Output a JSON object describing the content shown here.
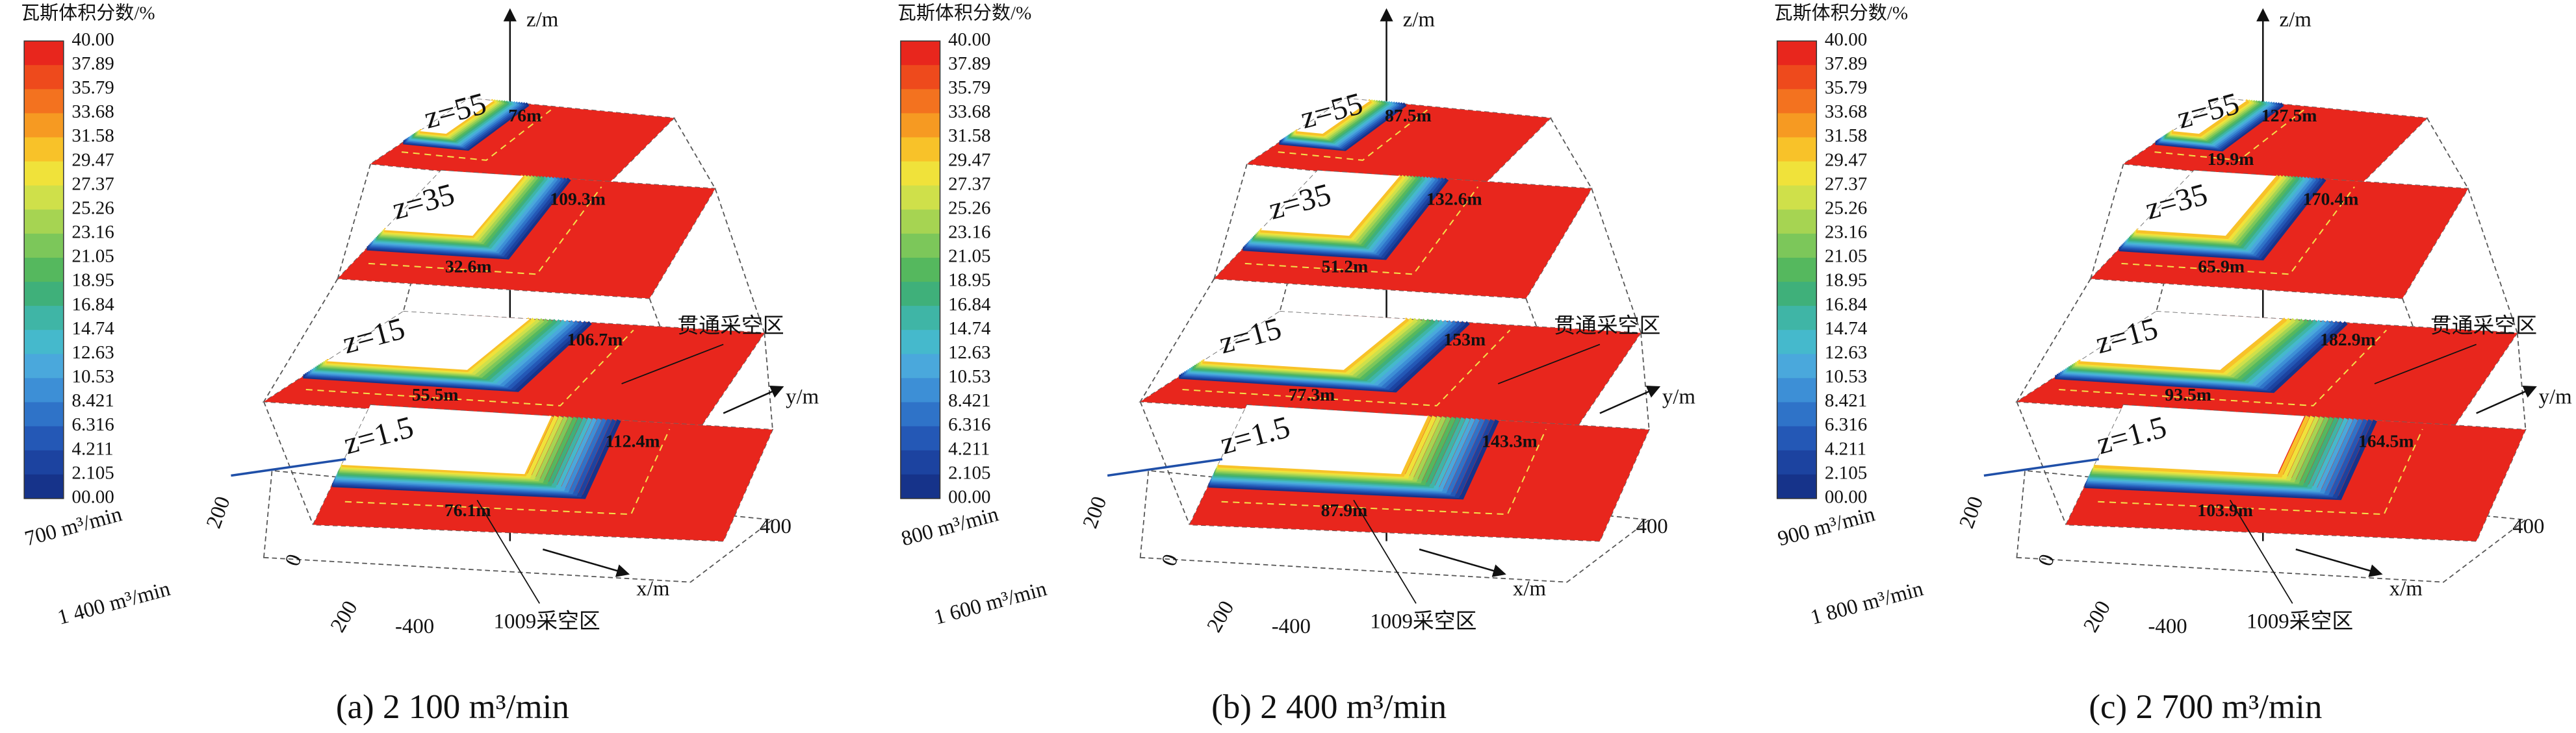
{
  "colorbar": {
    "title": "瓦斯体积分数/%",
    "labels": [
      "40.00",
      "37.89",
      "35.79",
      "33.68",
      "31.58",
      "29.47",
      "27.37",
      "25.26",
      "23.16",
      "21.05",
      "18.95",
      "16.84",
      "14.74",
      "12.63",
      "10.53",
      "8.421",
      "6.316",
      "4.211",
      "2.105",
      "00.00"
    ],
    "colors": [
      "#e8261d",
      "#ee4a1c",
      "#f3721f",
      "#f69a22",
      "#f8c229",
      "#f0e23a",
      "#cfe04a",
      "#a6d452",
      "#7cc75a",
      "#55b85e",
      "#3fb07a",
      "#3fb5a6",
      "#45b9cc",
      "#4aa8dc",
      "#3d8fd6",
      "#2f73c8",
      "#2458b6",
      "#1c43a0",
      "#16338a"
    ]
  },
  "panels": [
    {
      "caption": "(a) 2 100 m³/min",
      "z_axis": "z/m",
      "x_axis": "x/m",
      "y_axis": "y/m",
      "planes": [
        {
          "label": "z=55",
          "distances": [
            "76m"
          ]
        },
        {
          "label": "z=35",
          "distances": [
            "109.3m",
            "32.6m"
          ]
        },
        {
          "label": "z=15",
          "distances": [
            "106.7m",
            "55.5m"
          ]
        },
        {
          "label": "z=1.5",
          "distances": [
            "112.4m",
            "76.1m"
          ]
        }
      ],
      "regions": [
        "贯通采空区",
        "1009采空区"
      ],
      "flows": [
        "700 m³/min",
        "1 400 m³/min"
      ],
      "ticks": [
        "200",
        "0",
        "200",
        "-400",
        "400"
      ]
    },
    {
      "caption": "(b) 2 400 m³/min",
      "z_axis": "z/m",
      "x_axis": "x/m",
      "y_axis": "y/m",
      "planes": [
        {
          "label": "z=55",
          "distances": [
            "87.5m"
          ]
        },
        {
          "label": "z=35",
          "distances": [
            "132.6m",
            "51.2m"
          ]
        },
        {
          "label": "z=15",
          "distances": [
            "153m",
            "77.3m"
          ]
        },
        {
          "label": "z=1.5",
          "distances": [
            "143.3m",
            "87.9m"
          ]
        }
      ],
      "regions": [
        "贯通采空区",
        "1009采空区"
      ],
      "flows": [
        "800 m³/min",
        "1 600 m³/min"
      ],
      "ticks": [
        "200",
        "0",
        "200",
        "-400",
        "400"
      ]
    },
    {
      "caption": "(c) 2 700 m³/min",
      "z_axis": "z/m",
      "x_axis": "x/m",
      "y_axis": "y/m",
      "planes": [
        {
          "label": "z=55",
          "distances": [
            "127.5m",
            "19.9m"
          ]
        },
        {
          "label": "z=35",
          "distances": [
            "170.4m",
            "65.9m"
          ]
        },
        {
          "label": "z=15",
          "distances": [
            "182.9m",
            "93.5m"
          ]
        },
        {
          "label": "z=1.5",
          "distances": [
            "164.5m",
            "103.9m"
          ]
        }
      ],
      "regions": [
        "贯通采空区",
        "1009采空区"
      ],
      "flows": [
        "900 m³/min",
        "1 800 m³/min"
      ],
      "ticks": [
        "200",
        "0",
        "200",
        "-400",
        "400"
      ]
    }
  ]
}
